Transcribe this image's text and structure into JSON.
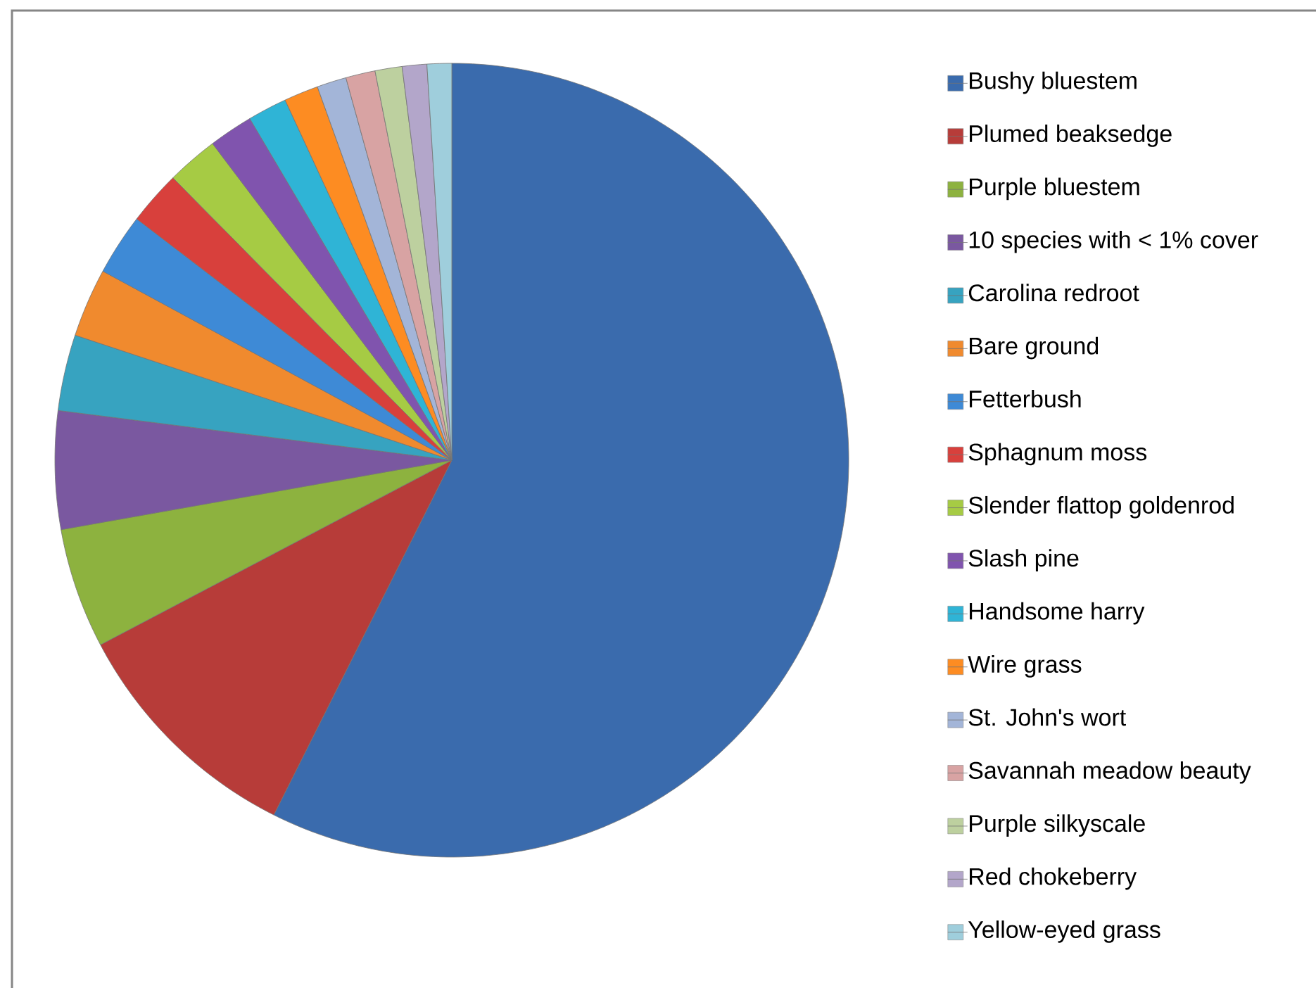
{
  "chart_data": {
    "type": "pie",
    "categories": [
      "Bushy bluestem",
      "Plumed beaksedge",
      "Purple bluestem",
      "10 species with < 1% cover",
      "Carolina redroot",
      "Bare ground",
      "Fetterbush",
      "Sphagnum moss",
      "Slender flattop goldenrod",
      "Slash pine",
      "Handsome harry",
      "Wire grass",
      "St. John's wort",
      "Savannah meadow beauty",
      "Purple silkyscale",
      "Red chokeberry",
      "Yellow-eyed grass"
    ],
    "values": [
      57.4,
      9.9,
      4.9,
      4.8,
      3.1,
      2.8,
      2.5,
      2.2,
      2.1,
      1.8,
      1.6,
      1.4,
      1.2,
      1.2,
      1.1,
      1.0,
      1.0
    ],
    "colors": [
      "#3a6bad",
      "#b73c39",
      "#8db23f",
      "#7a58a0",
      "#37a3c0",
      "#f08a2e",
      "#3e8ad6",
      "#d8403c",
      "#a6cb44",
      "#8054ae",
      "#2fb4d6",
      "#fd8c22",
      "#a3b5d8",
      "#d8a3a3",
      "#bdd09f",
      "#b3a6ca",
      "#9fcedc"
    ],
    "legend": "right"
  }
}
